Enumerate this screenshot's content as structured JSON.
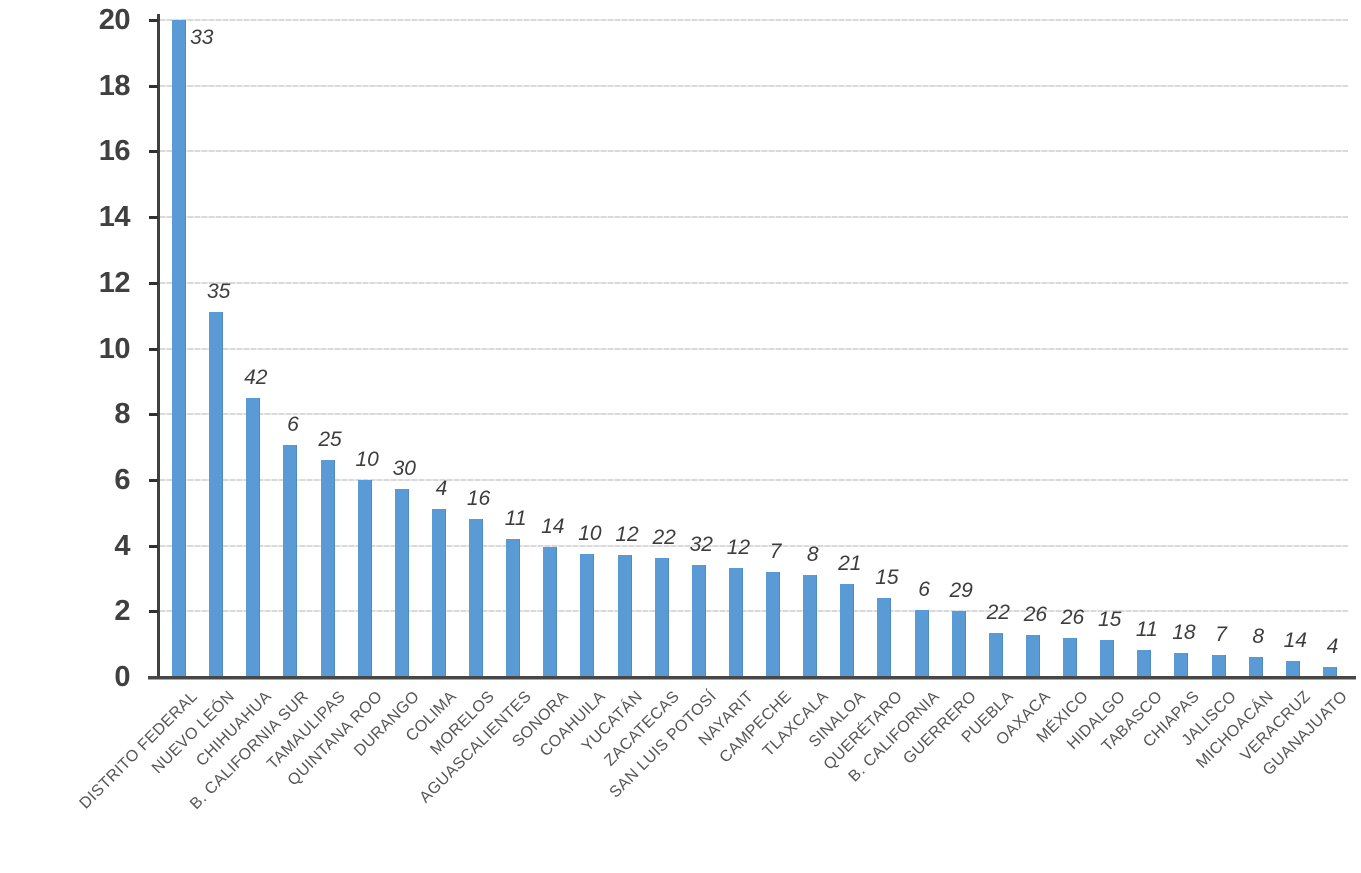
{
  "chart_data": {
    "type": "bar",
    "title": "",
    "categories": [
      "DISTRITO FEDERAL",
      "NUEVO LEÓN",
      "CHIHUAHUA",
      "B. CALIFORNIA SUR",
      "TAMAULIPAS",
      "QUINTANA ROO",
      "DURANGO",
      "COLIMA",
      "MORELOS",
      "AGUASCALIENTES",
      "SONORA",
      "COAHUILA",
      "YUCATÁN",
      "ZACATECAS",
      "SAN LUIS POTOSÍ",
      "NAYARIT",
      "CAMPECHE",
      "TLAXCALA",
      "SINALOA",
      "QUERÉTARO",
      "B. CALIFORNIA",
      "GUERRERO",
      "PUEBLA",
      "OAXACA",
      "MÉXICO",
      "HIDALGO",
      "TABASCO",
      "CHIAPAS",
      "JALISCO",
      "MICHOACÁN",
      "VERACRUZ",
      "GUANAJUATO"
    ],
    "values": [
      20,
      11.1,
      8.5,
      7.05,
      6.6,
      6.0,
      5.72,
      5.12,
      4.82,
      4.2,
      3.95,
      3.75,
      3.72,
      3.62,
      3.4,
      3.32,
      3.2,
      3.1,
      2.82,
      2.4,
      2.05,
      2.0,
      1.33,
      1.28,
      1.18,
      1.12,
      0.83,
      0.72,
      0.68,
      0.6,
      0.48,
      0.3
    ],
    "bar_labels": [
      "33",
      "35",
      "42",
      "6",
      "25",
      "10",
      "30",
      "4",
      "16",
      "11",
      "14",
      "10",
      "12",
      "22",
      "32",
      "12",
      "7",
      "8",
      "21",
      "15",
      "6",
      "29",
      "22",
      "26",
      "26",
      "15",
      "11",
      "18",
      "7",
      "8",
      "14",
      "4"
    ],
    "xlabel": "",
    "ylabel": "",
    "ylim": [
      0,
      20
    ],
    "y_tick_step": 2,
    "y_tick_labels": [
      "20",
      "18",
      "16",
      "14",
      "12",
      "10",
      "8",
      "6",
      "4",
      "2",
      "0"
    ],
    "bar_color": "#5b9bd5",
    "grid": true,
    "legend_position": "none",
    "x_label_rotation_deg": -45,
    "first_bar_clipped_at_ymax": true
  }
}
